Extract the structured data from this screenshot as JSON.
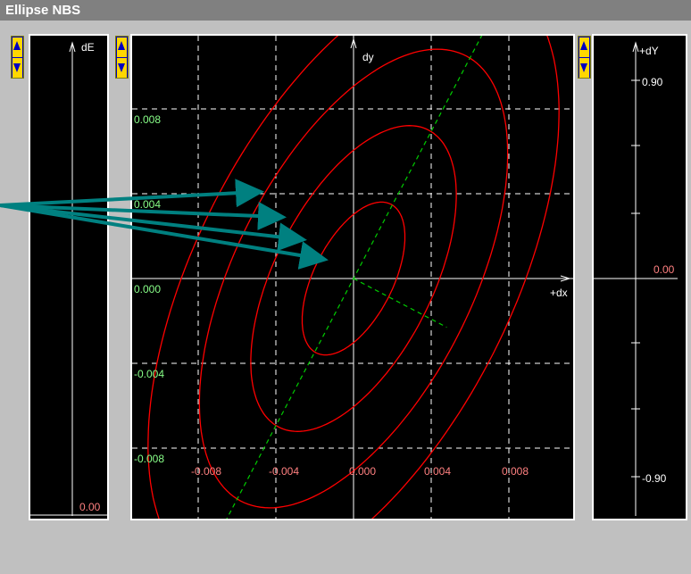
{
  "window": {
    "title": "Ellipse NBS"
  },
  "colors": {
    "title_bar": "#808080",
    "window_bg": "#c0c0c0",
    "plot_bg": "#000000",
    "axes": "#ffffff",
    "grid": "#ffffff",
    "ellipse": "#ff0000",
    "principal_axes": "#00cc00",
    "label_green": "#88ff88",
    "label_red": "#ff8080",
    "arrow": "#008080",
    "scroll_bg": "#0000c0",
    "scroll_arrow": "#ffd700"
  },
  "de_panel": {
    "axis_label": "dE",
    "value_label": "0.00"
  },
  "main_panel": {
    "y_axis_label": "dy",
    "x_axis_label": "+dx",
    "x_tick_labels": [
      "-0.008",
      "-0.004",
      "0.000",
      "0.004",
      "0.008"
    ],
    "y_tick_labels": [
      "0.008",
      "0.004",
      "0.000",
      "-0.004",
      "-0.008"
    ]
  },
  "dy_panel": {
    "axis_label": "+dY",
    "top_label": "0.90",
    "mid_label": "0.00",
    "bottom_label": "-0.90"
  },
  "chart_data": {
    "type": "scatter",
    "title": "",
    "xlabel": "+dx",
    "ylabel": "dy",
    "xlim": [
      -0.0115,
      0.0115
    ],
    "ylim": [
      -0.0122,
      0.0122
    ],
    "x_ticks": [
      -0.008,
      -0.004,
      0.0,
      0.004,
      0.008
    ],
    "y_ticks": [
      -0.008,
      -0.004,
      0.0,
      0.004,
      0.008
    ],
    "grid": true,
    "ellipses": [
      {
        "center": [
          0.0,
          0.0
        ],
        "semi_major": 0.004,
        "semi_minor": 0.002,
        "angle_deg": 60
      },
      {
        "center": [
          0.0,
          0.0
        ],
        "semi_major": 0.008,
        "semi_minor": 0.004,
        "angle_deg": 60
      },
      {
        "center": [
          0.0,
          0.0
        ],
        "semi_major": 0.012,
        "semi_minor": 0.006,
        "angle_deg": 60
      },
      {
        "center": [
          0.0,
          0.0
        ],
        "semi_major": 0.016,
        "semi_minor": 0.008,
        "angle_deg": 60
      }
    ],
    "principal_axes": [
      {
        "from": [
          -0.0068,
          -0.0118
        ],
        "to": [
          0.0068,
          0.0118
        ]
      },
      {
        "from": [
          0.0,
          0.0
        ],
        "to": [
          0.0048,
          -0.0023
        ]
      }
    ]
  }
}
